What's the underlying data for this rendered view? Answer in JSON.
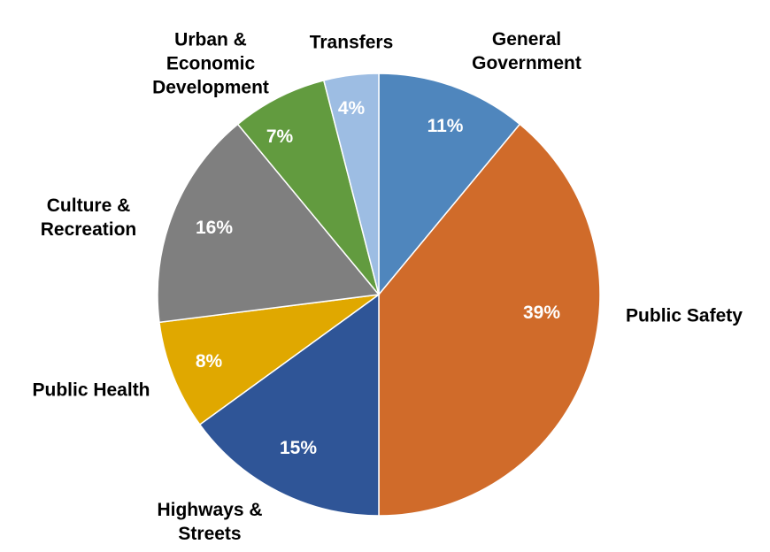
{
  "chart_data": {
    "type": "pie",
    "categories": [
      "General Government",
      "Public Safety",
      "Highways & Streets",
      "Public Health",
      "Culture & Recreation",
      "Urban & Economic Development",
      "Transfers"
    ],
    "values": [
      11,
      39,
      15,
      8,
      16,
      7,
      4
    ],
    "value_labels": [
      "11%",
      "39%",
      "15%",
      "8%",
      "16%",
      "7%",
      "4%"
    ],
    "colors": [
      "#4f86bd",
      "#d06b2a",
      "#2f5597",
      "#e0a800",
      "#7f7f7f",
      "#629b3f",
      "#9dbde3"
    ],
    "start_angle": 90,
    "direction": "clockwise"
  }
}
